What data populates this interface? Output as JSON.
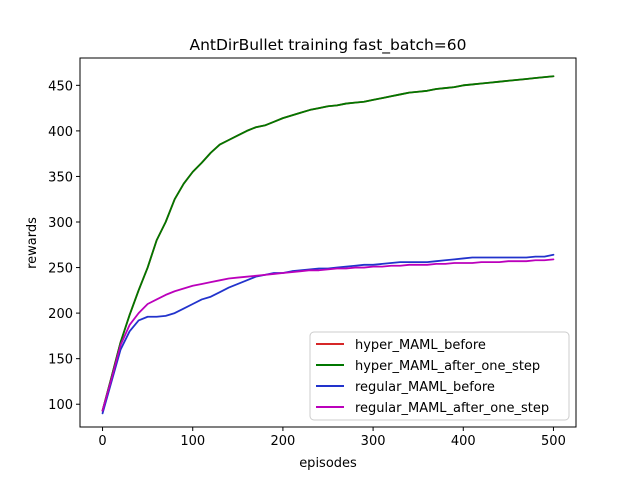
{
  "chart_data": {
    "type": "line",
    "title": "AntDirBullet training fast_batch=60",
    "xlabel": "episodes",
    "ylabel": "rewards",
    "xlim": [
      -25,
      525
    ],
    "ylim": [
      75,
      480
    ],
    "xticks": [
      0,
      100,
      200,
      300,
      400,
      500
    ],
    "yticks": [
      100,
      150,
      200,
      250,
      300,
      350,
      400,
      450
    ],
    "grid": false,
    "legend_position": "lower-right",
    "x": [
      0,
      10,
      20,
      30,
      40,
      50,
      60,
      70,
      80,
      90,
      100,
      110,
      120,
      130,
      140,
      150,
      160,
      170,
      180,
      190,
      200,
      210,
      220,
      230,
      240,
      250,
      260,
      270,
      280,
      290,
      300,
      310,
      320,
      330,
      340,
      350,
      360,
      370,
      380,
      390,
      400,
      410,
      420,
      430,
      440,
      450,
      460,
      470,
      480,
      490,
      500
    ],
    "series": [
      {
        "name": "hyper_MAML_before",
        "color": "#d62728",
        "values": [
          93,
          130,
          168,
          198,
          225,
          250,
          280,
          300,
          325,
          342,
          355,
          365,
          376,
          385,
          390,
          395,
          400,
          404,
          406,
          410,
          414,
          417,
          420,
          423,
          425,
          427,
          428,
          430,
          431,
          432,
          434,
          436,
          438,
          440,
          442,
          443,
          444,
          446,
          447,
          448,
          450,
          451,
          452,
          453,
          454,
          455,
          456,
          457,
          458,
          459,
          460
        ]
      },
      {
        "name": "hyper_MAML_after_one_step",
        "color": "#007700",
        "values": [
          93,
          130,
          168,
          198,
          225,
          250,
          280,
          300,
          325,
          342,
          355,
          365,
          376,
          385,
          390,
          395,
          400,
          404,
          406,
          410,
          414,
          417,
          420,
          423,
          425,
          427,
          428,
          430,
          431,
          432,
          434,
          436,
          438,
          440,
          442,
          443,
          444,
          446,
          447,
          448,
          450,
          451,
          452,
          453,
          454,
          455,
          456,
          457,
          458,
          459,
          460
        ]
      },
      {
        "name": "regular_MAML_before",
        "color": "#2233cc",
        "values": [
          90,
          125,
          160,
          180,
          192,
          196,
          196,
          197,
          200,
          205,
          210,
          215,
          218,
          223,
          228,
          232,
          236,
          240,
          242,
          244,
          244,
          246,
          247,
          248,
          249,
          249,
          250,
          251,
          252,
          253,
          253,
          254,
          255,
          256,
          256,
          256,
          256,
          257,
          258,
          259,
          260,
          261,
          261,
          261,
          261,
          261,
          261,
          261,
          262,
          262,
          264
        ]
      },
      {
        "name": "regular_MAML_after_one_step",
        "color": "#bb00bb",
        "values": [
          93,
          128,
          165,
          187,
          200,
          210,
          215,
          220,
          224,
          227,
          230,
          232,
          234,
          236,
          238,
          239,
          240,
          241,
          242,
          243,
          244,
          245,
          246,
          247,
          247,
          248,
          249,
          249,
          250,
          250,
          251,
          251,
          252,
          252,
          253,
          253,
          253,
          254,
          254,
          255,
          255,
          255,
          256,
          256,
          256,
          257,
          257,
          257,
          258,
          258,
          259
        ]
      }
    ]
  }
}
